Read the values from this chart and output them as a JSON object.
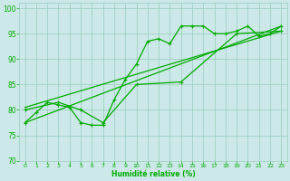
{
  "title": "",
  "xlabel": "Humidité relative (%)",
  "ylabel": "",
  "xlim": [
    -0.5,
    23.5
  ],
  "ylim": [
    70,
    101
  ],
  "yticks": [
    70,
    75,
    80,
    85,
    90,
    95,
    100
  ],
  "xticks": [
    0,
    1,
    2,
    3,
    4,
    5,
    6,
    7,
    8,
    9,
    10,
    11,
    12,
    13,
    14,
    15,
    16,
    17,
    18,
    19,
    20,
    21,
    22,
    23
  ],
  "bg_color": "#cce8e8",
  "grid_color": "#99ccbb",
  "line_color": "#00aa00",
  "line1_x": [
    0,
    1,
    2,
    3,
    4,
    5,
    6,
    7,
    8,
    9,
    10,
    11,
    12,
    13,
    14,
    15,
    16,
    17,
    18,
    19,
    20,
    21,
    22,
    23
  ],
  "line1_y": [
    77.5,
    79.5,
    81.5,
    81.0,
    80.5,
    77.5,
    77.0,
    77.0,
    82.0,
    86.0,
    89.0,
    93.5,
    94.0,
    93.0,
    96.5,
    96.5,
    96.5,
    95.0,
    95.0,
    95.5,
    96.5,
    94.5,
    95.0,
    96.5
  ],
  "line2_x": [
    0,
    23
  ],
  "line2_y": [
    77.5,
    96.5
  ],
  "line3_x": [
    0,
    23
  ],
  "line3_y": [
    80.5,
    95.5
  ],
  "line4_x": [
    0,
    3,
    5,
    7,
    10,
    14,
    19,
    23
  ],
  "line4_y": [
    80.0,
    81.5,
    80.0,
    77.5,
    85.0,
    85.5,
    95.0,
    95.5
  ]
}
